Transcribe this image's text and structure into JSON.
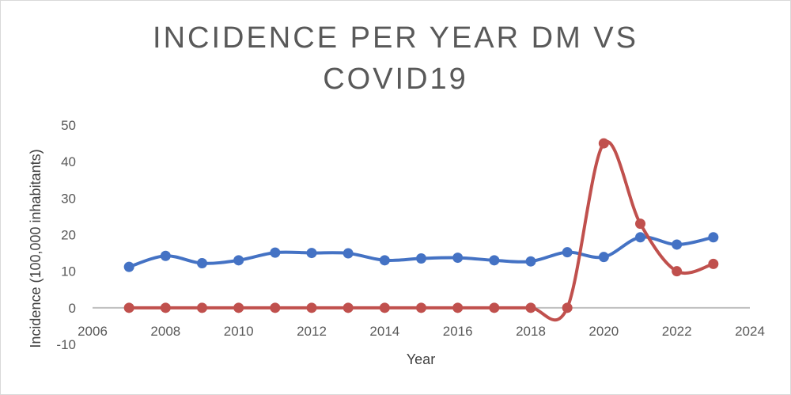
{
  "chart_data": {
    "type": "line",
    "title_lines": [
      "INCIDENCE PER YEAR DM VS",
      "COVID19"
    ],
    "xlabel": "Year",
    "ylabel": "Incidence (100,000 inhabitants)",
    "xlim": [
      2006,
      2024
    ],
    "ylim": [
      -10,
      50
    ],
    "xticks": [
      2006,
      2008,
      2010,
      2012,
      2014,
      2016,
      2018,
      2020,
      2022,
      2024
    ],
    "yticks": [
      -10,
      0,
      10,
      20,
      30,
      40,
      50
    ],
    "grid": false,
    "legend": "none",
    "smooth": true,
    "series": [
      {
        "color": "#4472c4",
        "x": [
          2007,
          2008,
          2009,
          2010,
          2011,
          2012,
          2013,
          2014,
          2015,
          2016,
          2017,
          2018,
          2019,
          2020,
          2021,
          2022,
          2023
        ],
        "y": [
          11.2,
          14.2,
          12.2,
          13.0,
          15.1,
          15.0,
          14.9,
          13.0,
          13.5,
          13.7,
          13.0,
          12.7,
          15.2,
          13.9,
          19.3,
          17.3,
          19.3
        ]
      },
      {
        "color": "#c0504d",
        "x": [
          2007,
          2008,
          2009,
          2010,
          2011,
          2012,
          2013,
          2014,
          2015,
          2016,
          2017,
          2018,
          2019,
          2020,
          2021,
          2022,
          2023
        ],
        "y": [
          0,
          0,
          0,
          0,
          0,
          0,
          0,
          0,
          0,
          0,
          0,
          0,
          0,
          45.0,
          23.0,
          10.0,
          12.0
        ]
      }
    ]
  }
}
